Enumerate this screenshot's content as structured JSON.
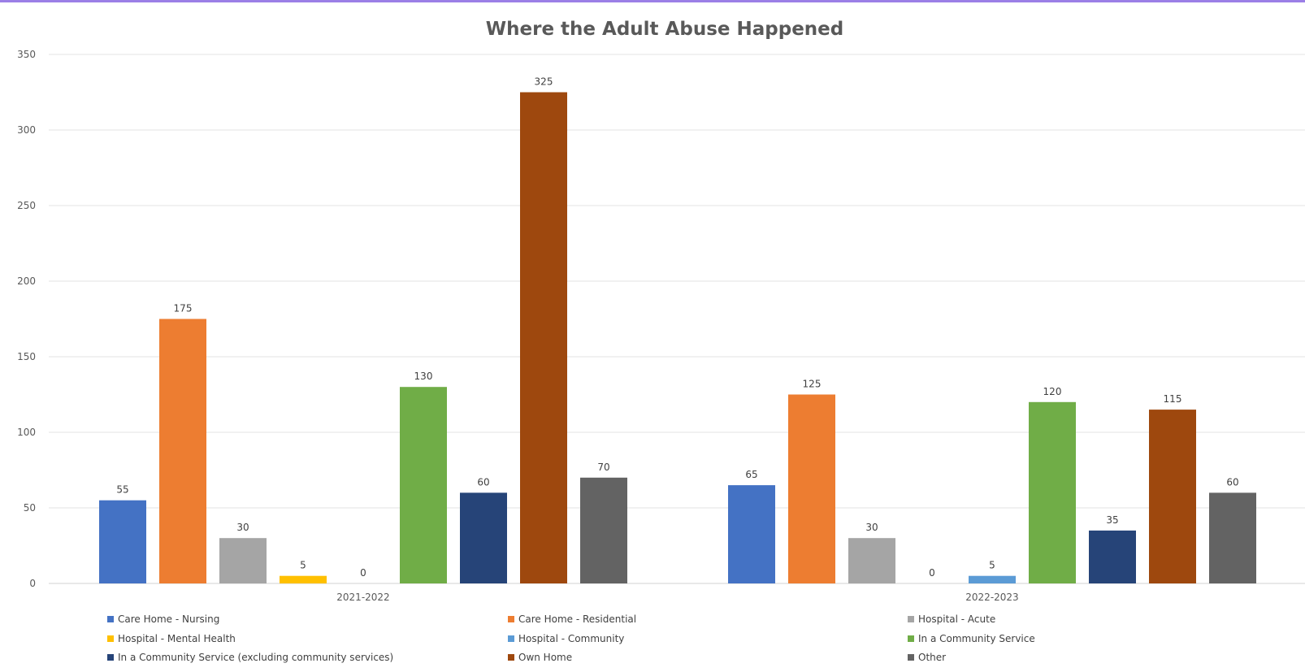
{
  "chart_data": {
    "type": "bar",
    "title": "Where the Adult Abuse Happened",
    "xlabel": "",
    "ylabel": "",
    "ylim": [
      0,
      350
    ],
    "yticks": [
      0,
      50,
      100,
      150,
      200,
      250,
      300,
      350
    ],
    "grid": true,
    "legend_position": "bottom",
    "categories": [
      "2021-2022",
      "2022-2023"
    ],
    "series": [
      {
        "name": "Care Home - Nursing",
        "color": "#4472C4",
        "values": [
          55,
          65
        ]
      },
      {
        "name": "Care Home - Residential",
        "color": "#ED7D31",
        "values": [
          175,
          125
        ]
      },
      {
        "name": "Hospital - Acute",
        "color": "#A5A5A5",
        "values": [
          30,
          30
        ]
      },
      {
        "name": "Hospital - Mental Health",
        "color": "#FFC000",
        "values": [
          5,
          0
        ]
      },
      {
        "name": "Hospital - Community",
        "color": "#5B9BD5",
        "values": [
          0,
          5
        ]
      },
      {
        "name": "In a Community Service",
        "color": "#70AD47",
        "values": [
          130,
          120
        ]
      },
      {
        "name": "In a Community Service (excluding community services)",
        "color": "#264478",
        "values": [
          60,
          35
        ]
      },
      {
        "name": "Own Home",
        "color": "#9E480E",
        "values": [
          325,
          115
        ]
      },
      {
        "name": "Other",
        "color": "#636363",
        "values": [
          70,
          60
        ]
      }
    ]
  }
}
